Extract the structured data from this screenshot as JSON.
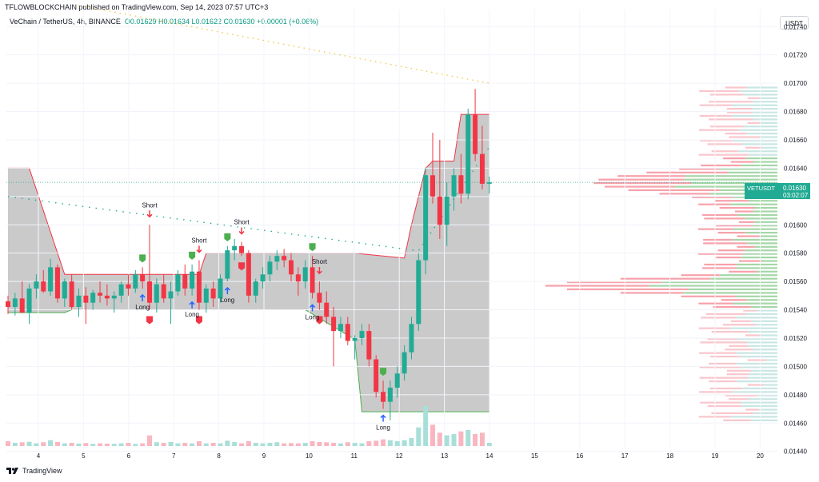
{
  "header": {
    "publisher_line": "TFLOWBLOCKCHAIN published on TradingView.com, Sep 14, 2023 07:57 UTC+3",
    "symbol_line": "VeChain / TetherUS, 4h, BINANCE",
    "ohlc_line": "O0.01629  H0.01634  L0.01622  C0.01630  +0.00001 (+0.06%)"
  },
  "currency_label": "USDT",
  "footer": {
    "brand": "TradingView"
  },
  "price_tag": {
    "symbol": "VETUSDT",
    "price": "0.01630",
    "countdown": "03:02:07"
  },
  "colors": {
    "up": "#22ab94",
    "down": "#f23645",
    "box": "#9e9e9e",
    "vol_up": "#a8dfd8",
    "vol_down": "#f9b6c0"
  },
  "chart_data": {
    "type": "candlestick",
    "y_ticks": [
      "0.01740",
      "0.01720",
      "0.01700",
      "0.01680",
      "0.01660",
      "0.01640",
      "0.01620",
      "0.01600",
      "0.01580",
      "0.01560",
      "0.01540",
      "0.01520",
      "0.01500",
      "0.01480",
      "0.01460",
      "0.01440"
    ],
    "ylim": [
      0.01437,
      0.01752
    ],
    "x_ticks": [
      "4",
      "5",
      "6",
      "7",
      "8",
      "9",
      "10",
      "11",
      "12",
      "13",
      "14",
      "15",
      "16",
      "17",
      "18",
      "19",
      "20"
    ],
    "last_price": 0.0163,
    "candles": [
      [
        0.01546,
        0.0155,
        0.01537,
        0.01542
      ],
      [
        0.01542,
        0.01552,
        0.01536,
        0.01548
      ],
      [
        0.01548,
        0.0156,
        0.0154,
        0.01538
      ],
      [
        0.01538,
        0.01558,
        0.0153,
        0.01555
      ],
      [
        0.01555,
        0.01565,
        0.01548,
        0.0156
      ],
      [
        0.0156,
        0.01568,
        0.01552,
        0.01553
      ],
      [
        0.01553,
        0.01576,
        0.0155,
        0.0157
      ],
      [
        0.0157,
        0.01572,
        0.01545,
        0.01548
      ],
      [
        0.01548,
        0.01562,
        0.01542,
        0.0156
      ],
      [
        0.0156,
        0.01565,
        0.0154,
        0.01542
      ],
      [
        0.01542,
        0.01555,
        0.01535,
        0.0155
      ],
      [
        0.0155,
        0.01556,
        0.0153,
        0.01545
      ],
      [
        0.01545,
        0.01554,
        0.0154,
        0.01552
      ],
      [
        0.01552,
        0.0156,
        0.01545,
        0.0155
      ],
      [
        0.0155,
        0.01558,
        0.01543,
        0.01548
      ],
      [
        0.01548,
        0.01553,
        0.01538,
        0.0155
      ],
      [
        0.0155,
        0.0156,
        0.01545,
        0.01558
      ],
      [
        0.01558,
        0.01565,
        0.0155,
        0.01555
      ],
      [
        0.01555,
        0.01568,
        0.01552,
        0.01565
      ],
      [
        0.01565,
        0.0157,
        0.01555,
        0.0156
      ],
      [
        0.0156,
        0.016,
        0.0154,
        0.01545
      ],
      [
        0.01545,
        0.01562,
        0.01538,
        0.01558
      ],
      [
        0.01558,
        0.01565,
        0.01545,
        0.01548
      ],
      [
        0.01548,
        0.0156,
        0.0153,
        0.01553
      ],
      [
        0.01553,
        0.01568,
        0.0155,
        0.01565
      ],
      [
        0.01565,
        0.01572,
        0.0155,
        0.01555
      ],
      [
        0.01555,
        0.01572,
        0.0155,
        0.01567
      ],
      [
        0.01567,
        0.01575,
        0.0154,
        0.01545
      ],
      [
        0.01545,
        0.01558,
        0.01538,
        0.01555
      ],
      [
        0.01555,
        0.0156,
        0.01542,
        0.01548
      ],
      [
        0.01548,
        0.01565,
        0.01545,
        0.01562
      ],
      [
        0.01562,
        0.01585,
        0.0156,
        0.01582
      ],
      [
        0.01582,
        0.0159,
        0.01575,
        0.01585
      ],
      [
        0.01585,
        0.01588,
        0.01578,
        0.0158
      ],
      [
        0.0158,
        0.01582,
        0.01545,
        0.0155
      ],
      [
        0.0155,
        0.01562,
        0.01545,
        0.0156
      ],
      [
        0.0156,
        0.0157,
        0.01555,
        0.01565
      ],
      [
        0.01565,
        0.01578,
        0.0156,
        0.01574
      ],
      [
        0.01574,
        0.01582,
        0.01568,
        0.01578
      ],
      [
        0.01578,
        0.01583,
        0.0157,
        0.01575
      ],
      [
        0.01575,
        0.0158,
        0.0156,
        0.01565
      ],
      [
        0.01565,
        0.0157,
        0.0155,
        0.0156
      ],
      [
        0.0156,
        0.01575,
        0.01555,
        0.0157
      ],
      [
        0.0157,
        0.01578,
        0.01548,
        0.01552
      ],
      [
        0.01552,
        0.0156,
        0.0154,
        0.01545
      ],
      [
        0.01545,
        0.01553,
        0.0153,
        0.01535
      ],
      [
        0.01535,
        0.01542,
        0.015,
        0.01525
      ],
      [
        0.01525,
        0.01535,
        0.0152,
        0.0153
      ],
      [
        0.0153,
        0.01535,
        0.01515,
        0.01518
      ],
      [
        0.01518,
        0.01522,
        0.01505,
        0.0152
      ],
      [
        0.0152,
        0.0153,
        0.01515,
        0.01525
      ],
      [
        0.01525,
        0.0153,
        0.015,
        0.01505
      ],
      [
        0.01505,
        0.01508,
        0.01478,
        0.01482
      ],
      [
        0.01482,
        0.0149,
        0.0147,
        0.01475
      ],
      [
        0.01475,
        0.0149,
        0.01462,
        0.01485
      ],
      [
        0.01485,
        0.015,
        0.01478,
        0.01495
      ],
      [
        0.01495,
        0.01515,
        0.0149,
        0.0151
      ],
      [
        0.0151,
        0.01535,
        0.01505,
        0.0153
      ],
      [
        0.0153,
        0.0158,
        0.01525,
        0.01575
      ],
      [
        0.01575,
        0.0164,
        0.01565,
        0.01635
      ],
      [
        0.01635,
        0.01665,
        0.01615,
        0.0162
      ],
      [
        0.0162,
        0.0166,
        0.0159,
        0.016
      ],
      [
        0.016,
        0.0163,
        0.01585,
        0.0162
      ],
      [
        0.0162,
        0.0164,
        0.0161,
        0.01635
      ],
      [
        0.01635,
        0.0165,
        0.01615,
        0.01622
      ],
      [
        0.01622,
        0.01682,
        0.01618,
        0.01678
      ],
      [
        0.01678,
        0.01696,
        0.01645,
        0.0165
      ],
      [
        0.0165,
        0.0167,
        0.01625,
        0.01629
      ],
      [
        0.01629,
        0.01634,
        0.01622,
        0.0163
      ]
    ],
    "volumes": [
      18,
      12,
      14,
      16,
      10,
      14,
      22,
      15,
      10,
      12,
      9,
      11,
      8,
      10,
      9,
      8,
      10,
      12,
      8,
      10,
      40,
      14,
      12,
      15,
      10,
      12,
      10,
      18,
      10,
      12,
      10,
      20,
      15,
      10,
      18,
      12,
      10,
      12,
      14,
      10,
      11,
      10,
      12,
      18,
      15,
      14,
      12,
      10,
      14,
      12,
      10,
      18,
      20,
      25,
      22,
      18,
      22,
      30,
      70,
      150,
      80,
      50,
      40,
      45,
      55,
      60,
      45,
      50,
      12
    ],
    "signals": [
      {
        "type": "short",
        "i": 20,
        "label": "Short"
      },
      {
        "type": "short",
        "i": 27,
        "label": "Short"
      },
      {
        "type": "short",
        "i": 33,
        "label": "Short"
      },
      {
        "type": "short",
        "i": 44,
        "label": "Short"
      },
      {
        "type": "long",
        "i": 19,
        "label": "Long"
      },
      {
        "type": "long",
        "i": 26,
        "label": "Long"
      },
      {
        "type": "long",
        "i": 31,
        "label": "Long"
      },
      {
        "type": "long",
        "i": 43,
        "label": "Long"
      },
      {
        "type": "long",
        "i": 53,
        "label": "Long"
      }
    ]
  }
}
